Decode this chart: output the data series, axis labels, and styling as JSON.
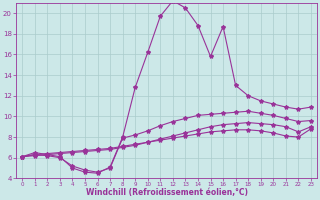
{
  "xlabel": "Windchill (Refroidissement éolien,°C)",
  "ylabel": "",
  "xlim": [
    -0.5,
    23.5
  ],
  "ylim": [
    4,
    21
  ],
  "xticks": [
    0,
    1,
    2,
    3,
    4,
    5,
    6,
    7,
    8,
    9,
    10,
    11,
    12,
    13,
    14,
    15,
    16,
    17,
    18,
    19,
    20,
    21,
    22,
    23
  ],
  "yticks": [
    4,
    6,
    8,
    10,
    12,
    14,
    16,
    18,
    20
  ],
  "bg_color": "#cce8e8",
  "grid_color": "#aacccc",
  "line_color": "#993399",
  "line1_x": [
    0,
    1,
    2,
    3,
    4,
    5,
    6,
    7,
    8,
    9,
    10,
    11,
    12,
    13,
    14,
    15,
    16,
    17,
    18,
    19,
    20,
    21,
    22,
    23
  ],
  "line1_y": [
    6.1,
    6.3,
    6.4,
    6.5,
    6.6,
    6.7,
    6.8,
    6.9,
    7.1,
    7.3,
    7.5,
    7.7,
    7.9,
    8.1,
    8.3,
    8.5,
    8.6,
    8.7,
    8.7,
    8.6,
    8.4,
    8.1,
    8.0,
    8.8
  ],
  "line2_x": [
    0,
    1,
    2,
    3,
    4,
    5,
    6,
    7,
    8,
    9,
    10,
    11,
    12,
    13,
    14,
    15,
    16,
    17,
    18,
    19,
    20,
    21,
    22,
    23
  ],
  "line2_y": [
    6.1,
    6.2,
    6.3,
    6.4,
    6.5,
    6.6,
    6.7,
    6.8,
    7.0,
    7.2,
    7.5,
    7.8,
    8.1,
    8.4,
    8.7,
    9.0,
    9.2,
    9.3,
    9.4,
    9.3,
    9.2,
    9.0,
    8.5,
    9.0
  ],
  "line3_x": [
    0,
    1,
    2,
    3,
    4,
    5,
    6,
    7,
    8,
    9,
    10,
    11,
    12,
    13,
    14,
    15,
    16,
    17,
    18,
    19,
    20,
    21,
    22,
    23
  ],
  "line3_y": [
    6.1,
    6.3,
    6.2,
    6.0,
    5.2,
    4.8,
    4.6,
    5.0,
    7.9,
    8.2,
    8.6,
    9.1,
    9.5,
    9.8,
    10.1,
    10.2,
    10.3,
    10.4,
    10.5,
    10.3,
    10.1,
    9.8,
    9.5,
    9.6
  ],
  "line4_x": [
    0,
    1,
    2,
    3,
    4,
    5,
    6,
    7,
    8,
    9,
    10,
    11,
    12,
    13,
    14,
    15,
    16,
    17,
    18,
    19,
    20,
    21,
    22,
    23
  ],
  "line4_y": [
    6.1,
    6.5,
    6.3,
    6.1,
    5.0,
    4.6,
    4.5,
    5.1,
    8.0,
    12.8,
    16.2,
    19.7,
    21.2,
    20.5,
    18.8,
    15.8,
    18.7,
    13.0,
    12.0,
    11.5,
    11.2,
    10.9,
    10.7,
    10.9
  ],
  "marker": "*",
  "markersize": 3,
  "linewidth": 0.8
}
